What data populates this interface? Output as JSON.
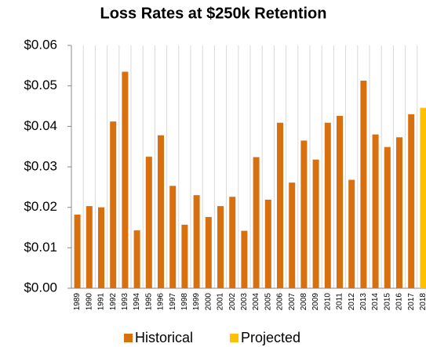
{
  "chart_data": {
    "type": "bar",
    "title": "Loss Rates at $250k Retention",
    "categories": [
      "1989",
      "1990",
      "1991",
      "1992",
      "1993",
      "1994",
      "1995",
      "1996",
      "1997",
      "1998",
      "1999",
      "2000",
      "2001",
      "2002",
      "2003",
      "2004",
      "2005",
      "2006",
      "2007",
      "2008",
      "2009",
      "2010",
      "2011",
      "2012",
      "2013",
      "2014",
      "2015",
      "2016",
      "2017",
      "2018"
    ],
    "series": [
      {
        "name": "Historical",
        "color": "#d9700f",
        "values": [
          0.0182,
          0.0203,
          0.02,
          0.0412,
          0.0535,
          0.0143,
          0.0325,
          0.0378,
          0.0253,
          0.0157,
          0.023,
          0.0176,
          0.0203,
          0.0226,
          0.0142,
          0.0324,
          0.0219,
          0.0409,
          0.0261,
          0.0365,
          0.0318,
          0.0409,
          0.0426,
          0.0268,
          0.0513,
          0.038,
          0.0349,
          0.0373,
          0.043,
          null
        ]
      },
      {
        "name": "Projected",
        "color": "#ffc000",
        "values": [
          null,
          null,
          null,
          null,
          null,
          null,
          null,
          null,
          null,
          null,
          null,
          null,
          null,
          null,
          null,
          null,
          null,
          null,
          null,
          null,
          null,
          null,
          null,
          null,
          null,
          null,
          null,
          null,
          null,
          0.0446
        ]
      }
    ],
    "ylim": [
      0,
      0.06
    ],
    "yticks": [
      {
        "value": 0,
        "label": "$0.00"
      },
      {
        "value": 0.01,
        "label": "$0.01"
      },
      {
        "value": 0.02,
        "label": "$0.02"
      },
      {
        "value": 0.03,
        "label": "$0.03"
      },
      {
        "value": 0.04,
        "label": "$0.04"
      },
      {
        "value": 0.05,
        "label": "$0.05"
      },
      {
        "value": 0.06,
        "label": "$0.06"
      }
    ],
    "legend": "bottom"
  }
}
